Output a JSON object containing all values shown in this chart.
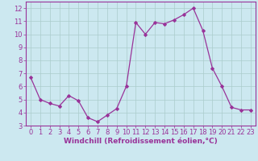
{
  "x": [
    0,
    1,
    2,
    3,
    4,
    5,
    6,
    7,
    8,
    9,
    10,
    11,
    12,
    13,
    14,
    15,
    16,
    17,
    18,
    19,
    20,
    21,
    22,
    23
  ],
  "y": [
    6.7,
    5.0,
    4.7,
    4.5,
    5.3,
    4.9,
    3.6,
    3.3,
    3.8,
    4.3,
    6.0,
    10.9,
    10.0,
    10.9,
    10.8,
    11.1,
    11.5,
    12.0,
    10.3,
    7.4,
    6.0,
    4.4,
    4.2,
    4.2
  ],
  "line_color": "#993399",
  "marker": "D",
  "marker_size": 2.0,
  "xlabel": "Windchill (Refroidissement éolien,°C)",
  "xlim": [
    -0.5,
    23.5
  ],
  "ylim": [
    3,
    12.5
  ],
  "yticks": [
    3,
    4,
    5,
    6,
    7,
    8,
    9,
    10,
    11,
    12
  ],
  "xticks": [
    0,
    1,
    2,
    3,
    4,
    5,
    6,
    7,
    8,
    9,
    10,
    11,
    12,
    13,
    14,
    15,
    16,
    17,
    18,
    19,
    20,
    21,
    22,
    23
  ],
  "bg_color": "#cce8f0",
  "grid_color": "#aacccc",
  "xlabel_fontsize": 6.5,
  "tick_fontsize": 6.0,
  "line_color_hex": "#993399"
}
